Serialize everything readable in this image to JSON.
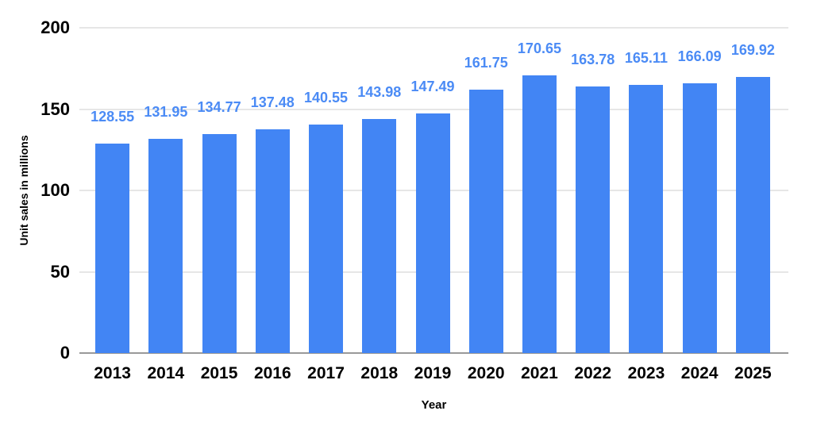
{
  "chart_data": {
    "type": "bar",
    "title": "",
    "xlabel": "Year",
    "ylabel": "Unit sales in millions",
    "categories": [
      "2013",
      "2014",
      "2015",
      "2016",
      "2017",
      "2018",
      "2019",
      "2020",
      "2021",
      "2022",
      "2023",
      "2024",
      "2025"
    ],
    "values": [
      128.55,
      131.95,
      134.77,
      137.48,
      140.55,
      143.98,
      147.49,
      161.75,
      170.65,
      163.78,
      165.11,
      166.09,
      169.92
    ],
    "ylim": [
      0,
      200
    ],
    "yticks": [
      0,
      50,
      100,
      150,
      200
    ],
    "grid": true,
    "legend": "none",
    "colors": {
      "bar": "#4285f4",
      "data_label": "#4b8bf5",
      "gridline": "#e6e6e6",
      "baseline": "#999999",
      "axis_text": "#000000"
    }
  }
}
